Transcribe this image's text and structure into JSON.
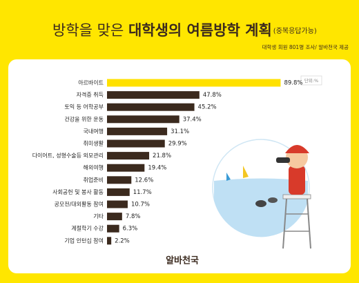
{
  "chart_data": {
    "type": "bar",
    "orientation": "horizontal",
    "title_light": "방학을 맞은",
    "title_bold": "대학생의 여름방학 계획",
    "title_note": "(중복응답가능)",
    "source": "대학생 회원 801명 조사/ 알바천국 제공",
    "unit": "단위:%",
    "brand": "알바천국",
    "categories": [
      "아르바이트",
      "자격증 취득",
      "토익 등 어학공부",
      "건강을 위한 운동",
      "국내여행",
      "취미생활",
      "다이어트, 성형수술등 외모관리",
      "해외여행",
      "취업준비",
      "사회공헌 및 봉사 활동",
      "공모전/대외활동 참여",
      "기타",
      "계절학기 수강",
      "기업 인턴십 참여"
    ],
    "values": [
      89.8,
      47.8,
      45.2,
      37.4,
      31.1,
      29.9,
      21.8,
      19.4,
      12.6,
      11.7,
      10.7,
      7.8,
      6.3,
      2.2
    ],
    "value_labels": [
      "89.8%",
      "47.8%",
      "45.2%",
      "37.4%",
      "31.1%",
      "29.9%",
      "21.8%",
      "19.4%",
      "12.6%",
      "11.7%",
      "10.7%",
      "7.8%",
      "6.3%",
      "2.2%"
    ],
    "colors": [
      "#ffe100",
      "#3b2a1e",
      "#3b2a1e",
      "#3b2a1e",
      "#3b2a1e",
      "#3b2a1e",
      "#3b2a1e",
      "#3b2a1e",
      "#3b2a1e",
      "#3b2a1e",
      "#3b2a1e",
      "#3b2a1e",
      "#3b2a1e",
      "#3b2a1e"
    ]
  }
}
